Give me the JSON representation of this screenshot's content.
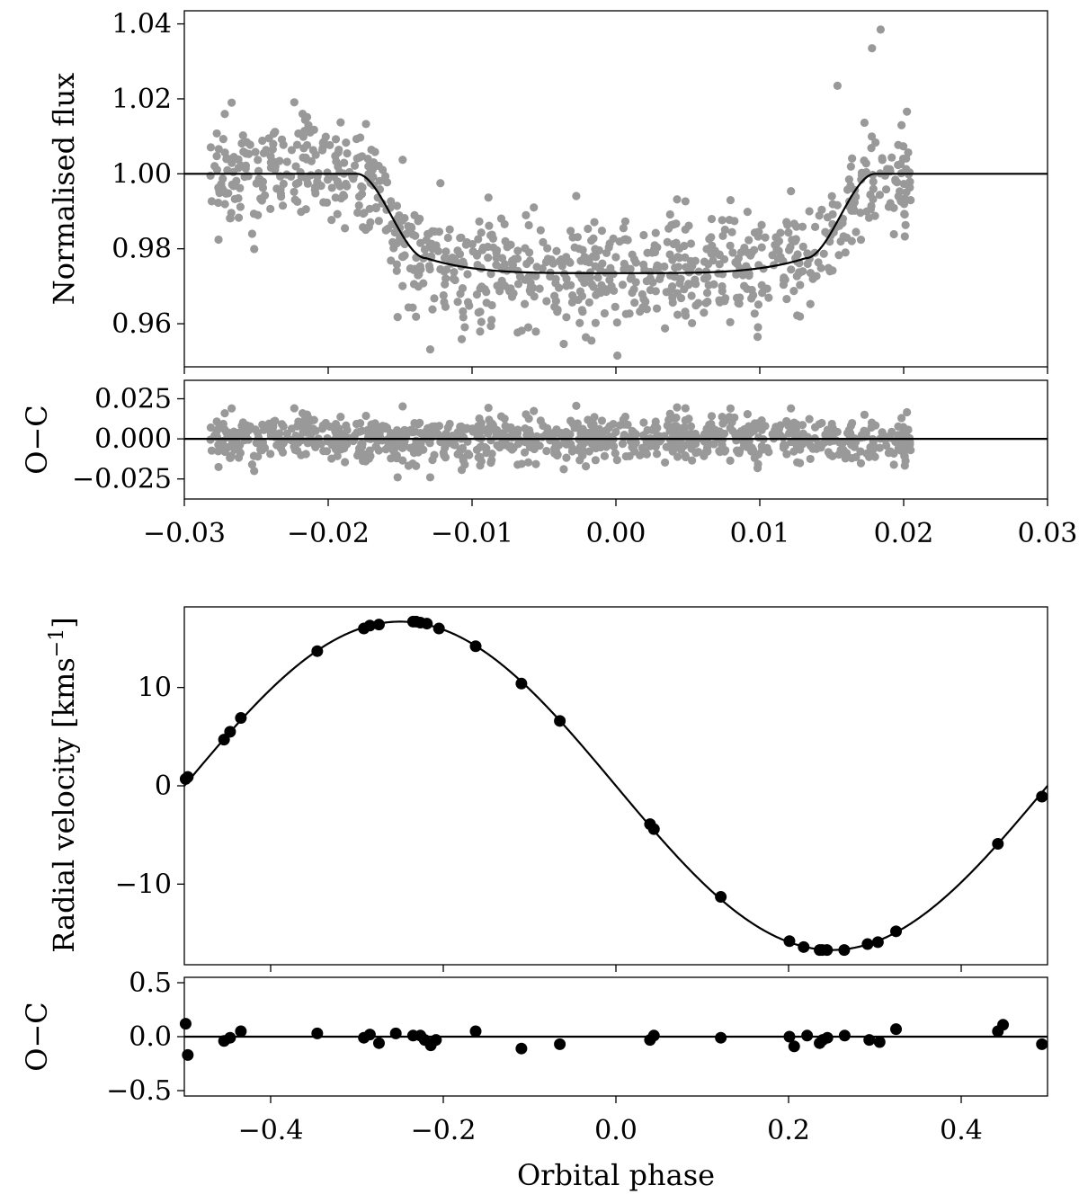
{
  "chart_data": [
    {
      "type": "scatter",
      "panel": "light curve",
      "ylabel": "Normalised flux",
      "xlim": [
        -0.03,
        0.03
      ],
      "ylim": [
        0.9485,
        1.0435
      ],
      "yticks": [
        "0.96",
        "0.98",
        "1.00",
        "1.02",
        "1.04"
      ],
      "ytick_values": [
        0.96,
        0.98,
        1.0,
        1.02,
        1.04
      ],
      "data_x_range": [
        -0.0282,
        0.0205
      ],
      "n_points": 900,
      "point_color": "#999999",
      "model_color": "#000000",
      "model": {
        "baseline": 1.0,
        "ingress_start": -0.018,
        "ingress_end": -0.0132,
        "egress_start": 0.0132,
        "egress_end": 0.018,
        "depth_at_contact": 0.9775,
        "depth_at_center": 0.9735
      },
      "highlighted_points": [
        {
          "x": 0.0154,
          "y": 1.0235
        },
        {
          "x": 0.0178,
          "y": 1.0335
        },
        {
          "x": 0.0184,
          "y": 1.0385
        },
        {
          "x": 0.0001,
          "y": 0.9515
        },
        {
          "x": -0.0017,
          "y": 0.9555
        },
        {
          "x": -0.0122,
          "y": 0.9975
        }
      ]
    },
    {
      "type": "scatter",
      "panel": "light curve residuals",
      "ylabel": "O−C",
      "xlabel": "",
      "xlim": [
        -0.03,
        0.03
      ],
      "ylim": [
        -0.0375,
        0.0365
      ],
      "xticks": [
        "−0.03",
        "−0.02",
        "−0.01",
        "0.00",
        "0.01",
        "0.02",
        "0.03"
      ],
      "xtick_values": [
        -0.03,
        -0.02,
        -0.01,
        0.0,
        0.01,
        0.02,
        0.03
      ],
      "yticks": [
        "−0.025",
        "0.000",
        "0.025"
      ],
      "ytick_values": [
        -0.025,
        0.0,
        0.025
      ],
      "zero_line": 0.0
    },
    {
      "type": "scatter",
      "panel": "radial velocity",
      "ylabel": "Radial velocity [kms",
      "ylabel_superscript": "−1",
      "ylabel_close": "]",
      "xlim": [
        -0.5,
        0.5
      ],
      "ylim": [
        -18.2,
        18.2
      ],
      "yticks": [
        "−10",
        "0",
        "10"
      ],
      "ytick_values": [
        -10,
        0,
        10
      ],
      "model": {
        "function": "sine",
        "semi_amplitude": 16.7,
        "systemic_velocity": 0.0
      },
      "series": [
        {
          "x": [
            -0.4985,
            -0.496,
            -0.454,
            -0.447,
            -0.4345,
            -0.346,
            -0.292,
            -0.285,
            -0.2745,
            -0.235,
            -0.2315,
            -0.2265,
            -0.219,
            -0.205,
            -0.1625,
            -0.1095,
            -0.065,
            0.0395,
            0.044,
            0.1215,
            0.201,
            0.2175,
            0.236,
            0.239,
            0.2445,
            0.2645,
            0.2915,
            0.3035,
            0.3245,
            0.4425,
            0.4935
          ],
          "y": [
            0.7,
            0.9,
            4.7,
            5.5,
            6.9,
            13.7,
            16.0,
            16.3,
            16.4,
            16.7,
            16.7,
            16.6,
            16.5,
            16.0,
            14.2,
            10.4,
            6.6,
            -3.9,
            -4.4,
            -11.3,
            -15.8,
            -16.4,
            -16.7,
            -16.7,
            -16.7,
            -16.7,
            -16.1,
            -15.9,
            -14.8,
            -5.9,
            -1.1
          ]
        }
      ]
    },
    {
      "type": "scatter",
      "panel": "radial velocity residuals",
      "ylabel": "O−C",
      "xlabel": "Orbital phase",
      "xlim": [
        -0.5,
        0.5
      ],
      "ylim": [
        -0.55,
        0.55
      ],
      "xticks": [
        "−0.4",
        "−0.2",
        "0.0",
        "0.2",
        "0.4"
      ],
      "xtick_values": [
        -0.4,
        -0.2,
        0.0,
        0.2,
        0.4
      ],
      "yticks": [
        "−0.5",
        "0.0",
        "0.5"
      ],
      "ytick_values": [
        -0.5,
        0.0,
        0.5
      ],
      "zero_line": 0.0,
      "series": [
        {
          "x": [
            -0.4985,
            -0.496,
            -0.454,
            -0.447,
            -0.4345,
            -0.346,
            -0.292,
            -0.285,
            -0.2745,
            -0.255,
            -0.235,
            -0.2265,
            -0.2215,
            -0.2145,
            -0.2085,
            -0.1625,
            -0.1095,
            -0.065,
            0.0395,
            0.044,
            0.1215,
            0.201,
            0.2065,
            0.2215,
            0.236,
            0.2395,
            0.245,
            0.265,
            0.2935,
            0.3055,
            0.3245,
            0.4425,
            0.4485,
            0.4935
          ],
          "y": [
            0.12,
            -0.17,
            -0.04,
            -0.01,
            0.05,
            0.03,
            -0.01,
            0.02,
            -0.06,
            0.03,
            0.01,
            0.01,
            -0.03,
            -0.08,
            -0.03,
            0.05,
            -0.11,
            -0.07,
            -0.03,
            0.01,
            -0.01,
            0.0,
            -0.09,
            0.01,
            -0.06,
            -0.03,
            -0.01,
            0.01,
            -0.03,
            -0.05,
            0.07,
            0.05,
            0.11,
            -0.07
          ],
          "yerr": [
            0.05,
            0.05,
            0.05,
            0.05,
            0.05,
            0.05,
            0.05,
            0.05,
            0.05,
            0.05,
            0.05,
            0.05,
            0.05,
            0.05,
            0.05,
            0.05,
            0.05,
            0.05,
            0.05,
            0.05,
            0.05,
            0.05,
            0.05,
            0.05,
            0.05,
            0.05,
            0.05,
            0.05,
            0.05,
            0.05,
            0.05,
            0.05,
            0.05,
            0.05
          ]
        }
      ]
    }
  ]
}
